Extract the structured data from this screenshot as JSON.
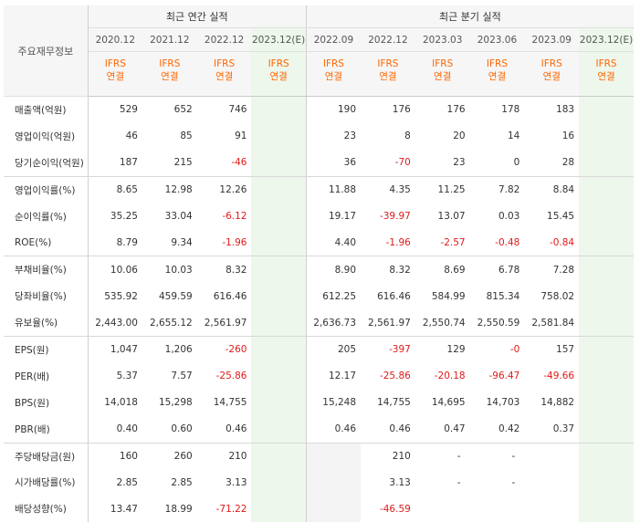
{
  "header": {
    "row_label": "주요재무정보",
    "annual_group": "최근 연간 실적",
    "quarter_group": "최근 분기 실적",
    "annual_periods": [
      "2020.12",
      "2021.12",
      "2022.12",
      "2023.12(E)"
    ],
    "quarter_periods": [
      "2022.09",
      "2022.12",
      "2023.03",
      "2023.06",
      "2023.09",
      "2023.12(E)"
    ],
    "basis_line1": "IFRS",
    "basis_line2": "연결"
  },
  "rows": [
    {
      "label": "매출액(억원)",
      "annual": [
        "529",
        "652",
        "746",
        ""
      ],
      "quarter": [
        "190",
        "176",
        "176",
        "178",
        "183",
        ""
      ]
    },
    {
      "label": "영업이익(억원)",
      "annual": [
        "46",
        "85",
        "91",
        ""
      ],
      "quarter": [
        "23",
        "8",
        "20",
        "14",
        "16",
        ""
      ]
    },
    {
      "label": "당기순이익(억원)",
      "annual": [
        "187",
        "215",
        "-46",
        ""
      ],
      "quarter": [
        "36",
        "-70",
        "23",
        "0",
        "28",
        ""
      ]
    },
    {
      "label": "영업이익률(%)",
      "annual": [
        "8.65",
        "12.98",
        "12.26",
        ""
      ],
      "quarter": [
        "11.88",
        "4.35",
        "11.25",
        "7.82",
        "8.84",
        ""
      ]
    },
    {
      "label": "순이익률(%)",
      "annual": [
        "35.25",
        "33.04",
        "-6.12",
        ""
      ],
      "quarter": [
        "19.17",
        "-39.97",
        "13.07",
        "0.03",
        "15.45",
        ""
      ]
    },
    {
      "label": "ROE(%)",
      "annual": [
        "8.79",
        "9.34",
        "-1.96",
        ""
      ],
      "quarter": [
        "4.40",
        "-1.96",
        "-2.57",
        "-0.48",
        "-0.84",
        ""
      ]
    },
    {
      "label": "부채비율(%)",
      "annual": [
        "10.06",
        "10.03",
        "8.32",
        ""
      ],
      "quarter": [
        "8.90",
        "8.32",
        "8.69",
        "6.78",
        "7.28",
        ""
      ]
    },
    {
      "label": "당좌비율(%)",
      "annual": [
        "535.92",
        "459.59",
        "616.46",
        ""
      ],
      "quarter": [
        "612.25",
        "616.46",
        "584.99",
        "815.34",
        "758.02",
        ""
      ]
    },
    {
      "label": "유보율(%)",
      "annual": [
        "2,443.00",
        "2,655.12",
        "2,561.97",
        ""
      ],
      "quarter": [
        "2,636.73",
        "2,561.97",
        "2,550.74",
        "2,550.59",
        "2,581.84",
        ""
      ]
    },
    {
      "label": "EPS(원)",
      "annual": [
        "1,047",
        "1,206",
        "-260",
        ""
      ],
      "quarter": [
        "205",
        "-397",
        "129",
        "-0",
        "157",
        ""
      ]
    },
    {
      "label": "PER(배)",
      "annual": [
        "5.37",
        "7.57",
        "-25.86",
        ""
      ],
      "quarter": [
        "12.17",
        "-25.86",
        "-20.18",
        "-96.47",
        "-49.66",
        ""
      ]
    },
    {
      "label": "BPS(원)",
      "annual": [
        "14,018",
        "15,298",
        "14,755",
        ""
      ],
      "quarter": [
        "15,248",
        "14,755",
        "14,695",
        "14,703",
        "14,882",
        ""
      ]
    },
    {
      "label": "PBR(배)",
      "annual": [
        "0.40",
        "0.60",
        "0.46",
        ""
      ],
      "quarter": [
        "0.46",
        "0.46",
        "0.47",
        "0.42",
        "0.37",
        ""
      ]
    },
    {
      "label": "주당배당금(원)",
      "annual": [
        "160",
        "260",
        "210",
        ""
      ],
      "quarter": [
        "",
        "210",
        "-",
        "-",
        "",
        ""
      ]
    },
    {
      "label": "시가배당률(%)",
      "annual": [
        "2.85",
        "2.85",
        "3.13",
        ""
      ],
      "quarter": [
        "",
        "3.13",
        "-",
        "-",
        "",
        ""
      ]
    },
    {
      "label": "배당성향(%)",
      "annual": [
        "13.47",
        "18.99",
        "-71.22",
        ""
      ],
      "quarter": [
        "",
        "-46.59",
        "",
        "",
        "",
        ""
      ]
    }
  ],
  "style": {
    "negative_color": "#e01a1a",
    "basis_color": "#ff6600",
    "estimate_bg": "#eef7ec"
  }
}
